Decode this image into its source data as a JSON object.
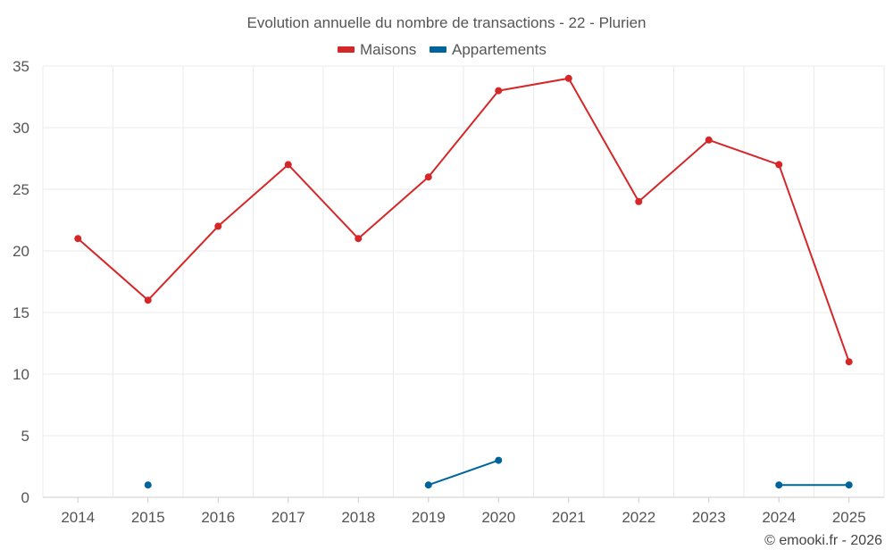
{
  "chart_data": {
    "type": "line",
    "title": "Evolution annuelle du nombre de transactions - 22 - Plurien",
    "categories": [
      "2014",
      "2015",
      "2016",
      "2017",
      "2018",
      "2019",
      "2020",
      "2021",
      "2022",
      "2023",
      "2024",
      "2025"
    ],
    "series": [
      {
        "name": "Maisons",
        "color": "#d62728",
        "values": [
          21,
          16,
          22,
          27,
          21,
          26,
          33,
          34,
          24,
          29,
          27,
          11
        ]
      },
      {
        "name": "Appartements",
        "color": "#00649c",
        "values": [
          null,
          1,
          null,
          null,
          null,
          1,
          3,
          null,
          null,
          null,
          1,
          1
        ]
      }
    ],
    "yticks": [
      0,
      5,
      10,
      15,
      20,
      25,
      30,
      35
    ],
    "ylim": [
      0,
      35
    ],
    "xlabel": "",
    "ylabel": "",
    "grid": true,
    "legend_position": "top-center",
    "credit": "© emooki.fr - 2026"
  }
}
